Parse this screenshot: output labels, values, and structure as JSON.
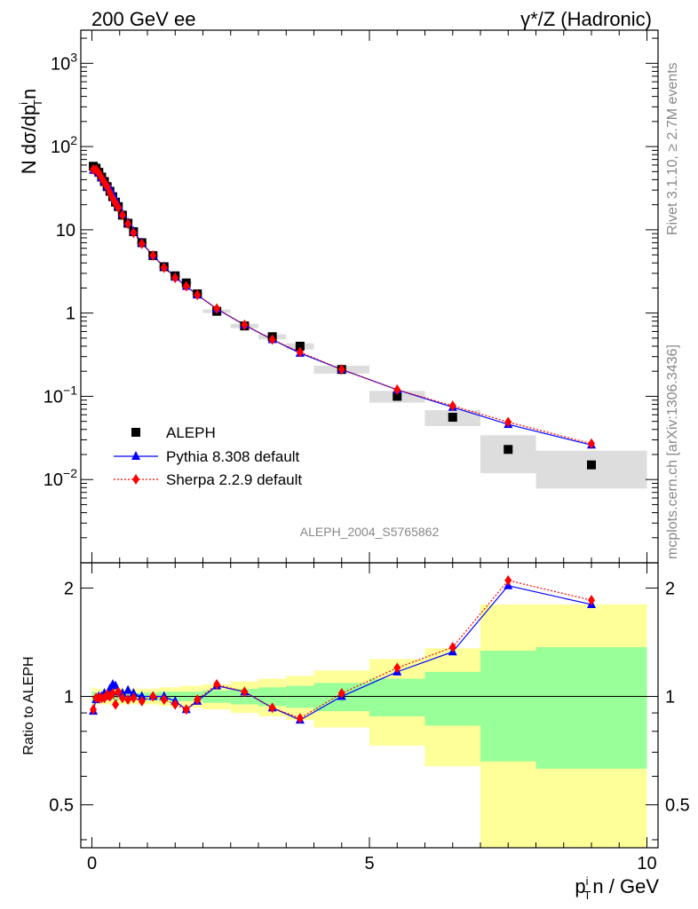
{
  "header": {
    "left": "200 GeV ee",
    "right": "γ*/Z (Hadronic)"
  },
  "side": {
    "rivet": "Rivet 3.1.10, ≥ 2.7M events",
    "mcplots": "mcplots.cern.ch [arXiv:1306.3436]"
  },
  "analysis_id": "ALEPH_2004_S5765862",
  "chart_data": [
    {
      "type": "scatter",
      "ylabel": {
        "main": "N dσ/dp",
        "sub": "T",
        "sup": "i",
        "tail": "n"
      },
      "xlim": [
        -0.2,
        10.2
      ],
      "ylim": [
        0.001,
        2500
      ],
      "log_y": true,
      "y_ticks": [
        {
          "v": 0.01,
          "base": "10",
          "exp": "−2"
        },
        {
          "v": 0.1,
          "base": "10",
          "exp": "−1"
        },
        {
          "v": 1,
          "base": "1",
          "exp": ""
        },
        {
          "v": 10,
          "base": "10",
          "exp": ""
        },
        {
          "v": 100,
          "base": "10",
          "exp": "2"
        },
        {
          "v": 1000,
          "base": "10",
          "exp": "3"
        }
      ],
      "legend": {
        "placement": "lower-left",
        "entries": [
          "ALEPH",
          "Pythia 8.308 default",
          "Sherpa 2.2.9 default"
        ]
      },
      "series": [
        {
          "name": "ALEPH",
          "color": "#000000",
          "marker": "square",
          "x": [
            0.025,
            0.075,
            0.125,
            0.175,
            0.225,
            0.275,
            0.325,
            0.375,
            0.425,
            0.475,
            0.55,
            0.65,
            0.75,
            0.9,
            1.1,
            1.3,
            1.5,
            1.7,
            1.9,
            2.25,
            2.75,
            3.25,
            3.75,
            4.5,
            5.5,
            6.5,
            7.5,
            9.0
          ],
          "y": [
            58,
            55,
            49,
            43,
            38,
            33,
            29,
            25,
            21.5,
            19,
            15,
            12,
            9.5,
            7.0,
            4.9,
            3.6,
            2.8,
            2.3,
            1.7,
            1.05,
            0.7,
            0.52,
            0.4,
            0.21,
            0.1,
            0.056,
            0.023,
            0.015
          ]
        },
        {
          "name": "Pythia 8.308 default",
          "color": "#0000ff",
          "marker": "triangle",
          "line": "solid",
          "x": [
            0.025,
            0.075,
            0.125,
            0.175,
            0.225,
            0.275,
            0.325,
            0.375,
            0.425,
            0.475,
            0.55,
            0.65,
            0.75,
            0.9,
            1.1,
            1.3,
            1.5,
            1.7,
            1.9,
            2.25,
            2.75,
            3.25,
            3.75,
            4.5,
            5.5,
            6.5,
            7.5,
            9.0
          ],
          "y": [
            52,
            52,
            48,
            42,
            38,
            33,
            31,
            27,
            23,
            19.5,
            15.5,
            12.2,
            9.6,
            7.0,
            4.9,
            3.6,
            2.7,
            2.1,
            1.65,
            1.12,
            0.72,
            0.48,
            0.33,
            0.21,
            0.12,
            0.074,
            0.046,
            0.026
          ]
        },
        {
          "name": "Sherpa 2.2.9 default",
          "color": "#ff0000",
          "marker": "diamond",
          "line": "dotted",
          "x": [
            0.025,
            0.075,
            0.125,
            0.175,
            0.225,
            0.275,
            0.325,
            0.375,
            0.425,
            0.475,
            0.55,
            0.65,
            0.75,
            0.9,
            1.1,
            1.3,
            1.5,
            1.7,
            1.9,
            2.25,
            2.75,
            3.25,
            3.75,
            4.5,
            5.5,
            6.5,
            7.5,
            9.0
          ],
          "y": [
            53,
            53,
            48,
            42,
            37,
            33,
            28,
            24,
            21,
            18.5,
            15,
            11.8,
            9.2,
            6.8,
            4.9,
            3.5,
            2.65,
            2.1,
            1.65,
            1.13,
            0.72,
            0.48,
            0.34,
            0.21,
            0.12,
            0.077,
            0.049,
            0.027
          ]
        }
      ]
    },
    {
      "type": "scatter",
      "ylabel": "Ratio to ALEPH",
      "xlabel": {
        "pre": "p",
        "sub": "T",
        "sup": "i",
        "tail": "n / GeV"
      },
      "xlim": [
        -0.2,
        10.2
      ],
      "ylim": [
        0.38,
        2.35
      ],
      "log_y": true,
      "x_ticks": [
        0,
        5,
        10
      ],
      "y_ticks": [
        0.5,
        1,
        2
      ],
      "band_edges": [
        0,
        0.05,
        0.1,
        0.15,
        0.2,
        0.25,
        0.3,
        0.35,
        0.4,
        0.45,
        0.5,
        0.6,
        0.7,
        0.8,
        1.0,
        1.2,
        1.4,
        1.6,
        1.8,
        2.0,
        2.5,
        3.0,
        3.5,
        4.0,
        5.0,
        6.0,
        7.0,
        8.0,
        10.0
      ],
      "band_inner": [
        0.03,
        0.025,
        0.025,
        0.025,
        0.025,
        0.025,
        0.025,
        0.025,
        0.025,
        0.025,
        0.025,
        0.025,
        0.025,
        0.025,
        0.025,
        0.03,
        0.03,
        0.03,
        0.03,
        0.04,
        0.05,
        0.06,
        0.07,
        0.09,
        0.12,
        0.17,
        0.34,
        0.37
      ],
      "band_outer": [
        0.06,
        0.05,
        0.05,
        0.05,
        0.05,
        0.05,
        0.05,
        0.05,
        0.05,
        0.05,
        0.05,
        0.05,
        0.05,
        0.05,
        0.05,
        0.06,
        0.06,
        0.07,
        0.07,
        0.08,
        0.1,
        0.12,
        0.14,
        0.18,
        0.27,
        0.36,
        0.8,
        0.8
      ],
      "inner_color": "#99ff99",
      "outer_color": "#ffff99",
      "series": [
        {
          "name": "Pythia 8.308 default",
          "color": "#0000ff",
          "marker": "triangle",
          "line": "solid",
          "x": [
            0.025,
            0.075,
            0.125,
            0.175,
            0.225,
            0.275,
            0.325,
            0.375,
            0.425,
            0.475,
            0.55,
            0.65,
            0.75,
            0.9,
            1.1,
            1.3,
            1.5,
            1.7,
            1.9,
            2.25,
            2.75,
            3.25,
            3.75,
            4.5,
            5.5,
            6.5,
            7.5,
            9.0
          ],
          "y": [
            0.91,
            0.98,
            1.0,
            1.0,
            1.02,
            1.0,
            1.05,
            1.08,
            1.07,
            1.03,
            1.02,
            1.04,
            1.02,
            1.0,
            1.0,
            1.0,
            0.97,
            0.92,
            0.97,
            1.07,
            1.03,
            0.93,
            0.86,
            1.0,
            1.17,
            1.33,
            2.03,
            1.8
          ]
        },
        {
          "name": "Sherpa 2.2.9 default",
          "color": "#ff0000",
          "marker": "diamond",
          "line": "dotted",
          "x": [
            0.025,
            0.075,
            0.125,
            0.175,
            0.225,
            0.275,
            0.325,
            0.375,
            0.425,
            0.475,
            0.55,
            0.65,
            0.75,
            0.9,
            1.1,
            1.3,
            1.5,
            1.7,
            1.9,
            2.25,
            2.75,
            3.25,
            3.75,
            4.5,
            5.5,
            6.5,
            7.5,
            9.0
          ],
          "y": [
            0.92,
            0.99,
            0.99,
            0.99,
            0.99,
            1.01,
            1.0,
            1.02,
            0.95,
            1.03,
            0.99,
            0.98,
            0.99,
            0.97,
            1.0,
            0.98,
            0.95,
            0.92,
            0.98,
            1.08,
            1.03,
            0.93,
            0.87,
            1.02,
            1.2,
            1.37,
            2.1,
            1.85
          ]
        }
      ]
    }
  ]
}
